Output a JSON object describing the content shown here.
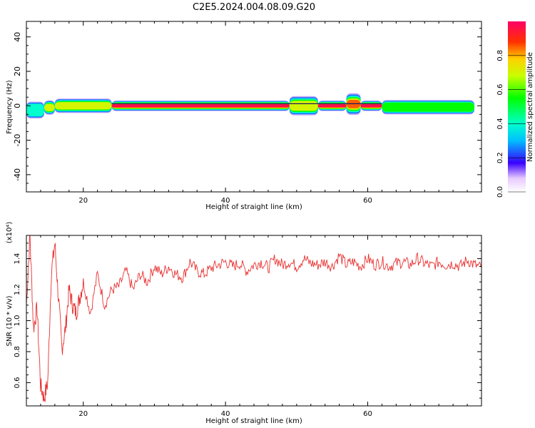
{
  "chart_data": [
    {
      "type": "heatmap",
      "title": "C2E5.2024.004.08.09.G20",
      "xlabel": "Height of straight line (km)",
      "ylabel": "Frequency (Hz)",
      "xlim": [
        12,
        76
      ],
      "ylim": [
        -50,
        49
      ],
      "xticks": [
        20,
        40,
        60
      ],
      "yticks": [
        -40,
        -20,
        0,
        20,
        40
      ],
      "colorbar": {
        "label": "Normalized spectral amplitude",
        "range": [
          0,
          1
        ],
        "ticks": [
          "0.0",
          "0.2",
          "0.4",
          "0.6",
          "0.8"
        ]
      },
      "band": {
        "center_hz": 0,
        "segments": [
          {
            "x": [
              12,
              14.5
            ],
            "center": -2.5,
            "halfwidth": 3.5,
            "peak": 0.5
          },
          {
            "x": [
              14.5,
              16
            ],
            "center": -1,
            "halfwidth": 3,
            "peak": 0.7
          },
          {
            "x": [
              16,
              24
            ],
            "center": 0,
            "halfwidth": 3,
            "peak": 0.75
          },
          {
            "x": [
              24,
              49
            ],
            "center": 0,
            "halfwidth": 2.2,
            "peak": 1.0
          },
          {
            "x": [
              49,
              53
            ],
            "center": 0,
            "halfwidth": 4,
            "peak": 0.8
          },
          {
            "x": [
              53,
              57
            ],
            "center": 0,
            "halfwidth": 2.2,
            "peak": 1.0
          },
          {
            "x": [
              57,
              59
            ],
            "center": 1,
            "halfwidth": 4.5,
            "peak": 0.85
          },
          {
            "x": [
              59,
              62
            ],
            "center": 0,
            "halfwidth": 2.2,
            "peak": 1.0
          },
          {
            "x": [
              62,
              75
            ],
            "center": -0.8,
            "halfwidth": 3,
            "peak": 0.6
          }
        ]
      }
    },
    {
      "type": "line",
      "xlabel": "Height of straight line (km)",
      "ylabel": "SNR (10 * v/v)",
      "ylabel_multiplier": "(x10⁴)",
      "xlim": [
        12,
        76
      ],
      "ylim": [
        0.45,
        1.55
      ],
      "xticks": [
        20,
        40,
        60
      ],
      "yticks": [
        "0.6",
        "0.8",
        "1.0",
        "1.2",
        "1.4"
      ],
      "series": [
        {
          "color": "#e8302f",
          "x": [
            12,
            12.5,
            13,
            13.5,
            14,
            14.5,
            15,
            15.5,
            16,
            16.5,
            17,
            17.5,
            18,
            18.5,
            19,
            19.5,
            20,
            21,
            22,
            23,
            24,
            25,
            26,
            27,
            28,
            29,
            30,
            31,
            32,
            33,
            34,
            35,
            36,
            37,
            38,
            39,
            40,
            41,
            42,
            43,
            44,
            45,
            46,
            47,
            48,
            49,
            50,
            51,
            52,
            53,
            54,
            55,
            56,
            57,
            58,
            59,
            60,
            61,
            62,
            63,
            64,
            65,
            66,
            67,
            68,
            69,
            70,
            71,
            72,
            73,
            74,
            75,
            76
          ],
          "values": [
            1.1,
            1.55,
            0.95,
            1.08,
            0.58,
            0.5,
            0.6,
            1.3,
            1.5,
            1.15,
            0.82,
            0.95,
            1.2,
            1.1,
            1.05,
            1.15,
            1.25,
            1.05,
            1.3,
            1.1,
            1.2,
            1.22,
            1.32,
            1.2,
            1.3,
            1.25,
            1.35,
            1.3,
            1.35,
            1.3,
            1.28,
            1.38,
            1.32,
            1.3,
            1.34,
            1.36,
            1.38,
            1.35,
            1.37,
            1.32,
            1.36,
            1.38,
            1.34,
            1.4,
            1.36,
            1.38,
            1.35,
            1.4,
            1.37,
            1.36,
            1.38,
            1.35,
            1.42,
            1.36,
            1.38,
            1.35,
            1.4,
            1.36,
            1.38,
            1.35,
            1.37,
            1.38,
            1.36,
            1.4,
            1.37,
            1.35,
            1.38,
            1.36,
            1.37,
            1.35,
            1.39,
            1.36,
            1.34
          ]
        }
      ]
    }
  ]
}
